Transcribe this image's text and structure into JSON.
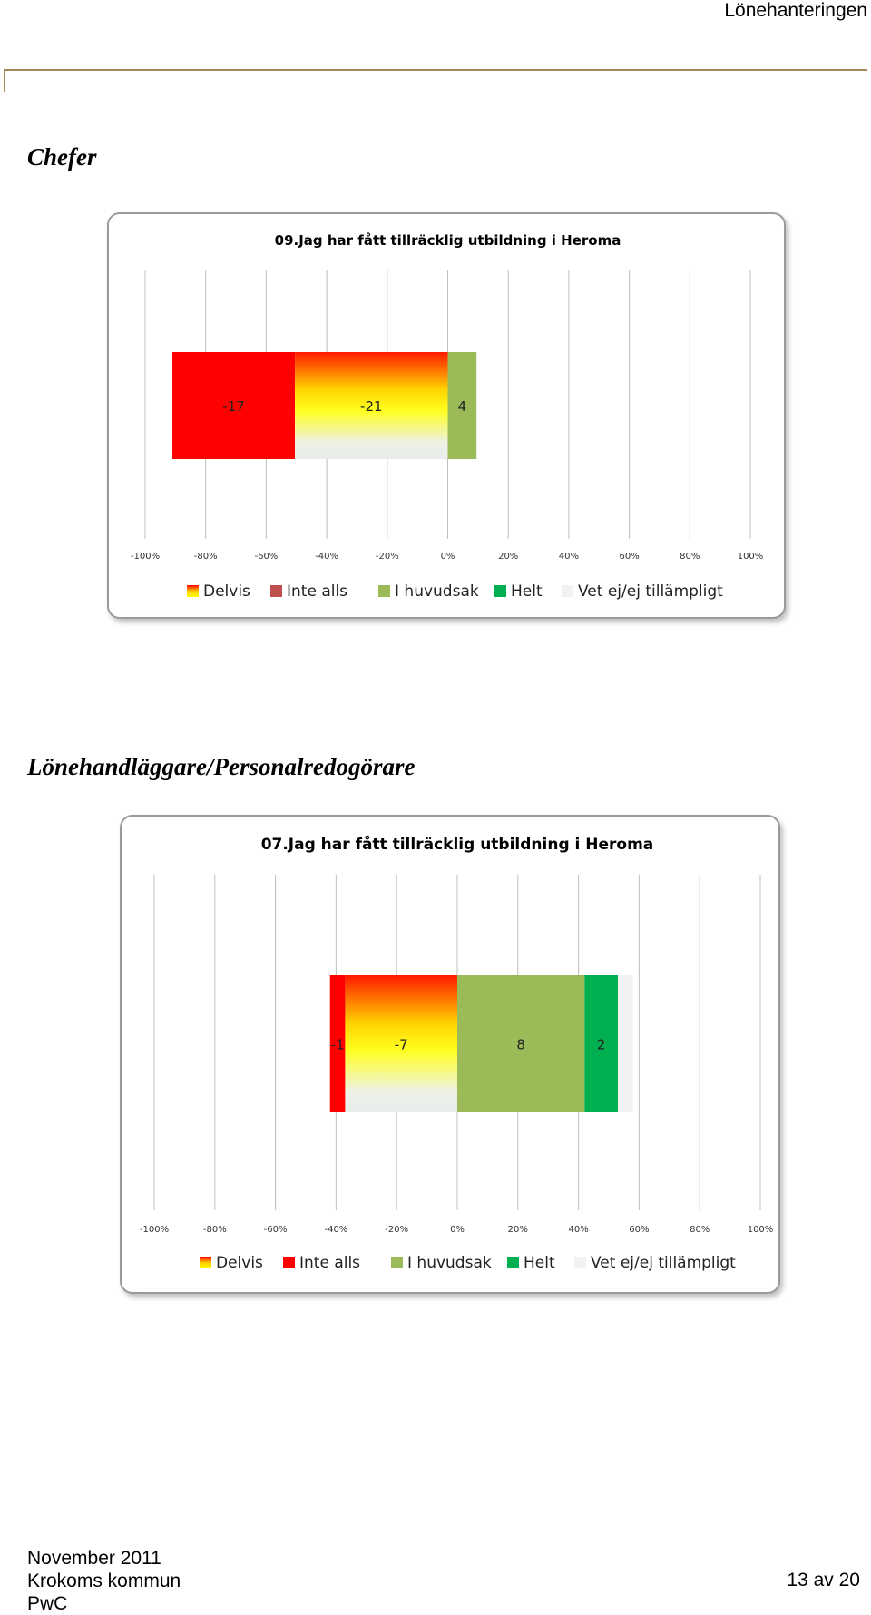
{
  "header": {
    "running_title": "Lönehanteringen"
  },
  "sections": [
    {
      "heading": "Chefer"
    },
    {
      "heading": "Lönehandläggare/Personalredogörare"
    }
  ],
  "chart_data": [
    {
      "type": "bar",
      "orientation": "horizontal-diverging",
      "title": "09.Jag har fått tillräcklig utbildning i Heroma",
      "xlim": [
        -100,
        100
      ],
      "x_ticks": [
        "-100%",
        "-80%",
        "-60%",
        "-40%",
        "-20%",
        "0%",
        "20%",
        "40%",
        "60%",
        "80%",
        "100%"
      ],
      "grid": true,
      "legend_position": "bottom",
      "segments": [
        {
          "series": "Inte alls",
          "start": -91,
          "end": -50.5,
          "label": "-17"
        },
        {
          "series": "Delvis",
          "start": -50.5,
          "end": 0,
          "label": "-21"
        },
        {
          "series": "I huvudsak",
          "start": 0,
          "end": 9.5,
          "label": "4"
        }
      ]
    },
    {
      "type": "bar",
      "orientation": "horizontal-diverging",
      "title": "07.Jag har fått tillräcklig utbildning i Heroma",
      "xlim": [
        -100,
        100
      ],
      "x_ticks": [
        "-100%",
        "-80%",
        "-60%",
        "-40%",
        "-20%",
        "0%",
        "20%",
        "40%",
        "60%",
        "80%",
        "100%"
      ],
      "grid": true,
      "legend_position": "bottom",
      "segments": [
        {
          "series": "Inte alls",
          "start": -42,
          "end": -37,
          "label": "-1"
        },
        {
          "series": "Delvis",
          "start": -37,
          "end": 0,
          "label": "-7"
        },
        {
          "series": "I huvudsak",
          "start": 0,
          "end": 42,
          "label": "8"
        },
        {
          "series": "Helt",
          "start": 42,
          "end": 53,
          "label": "2"
        },
        {
          "series": "Vet ej/ej tillämpligt",
          "start": 53,
          "end": 58,
          "label": ""
        }
      ]
    }
  ],
  "legend": [
    {
      "label": "Delvis",
      "swatch": "gradient"
    },
    {
      "label": "Inte alls",
      "color": "#ff0000"
    },
    {
      "label": "I huvudsak",
      "color": "#9bbb59"
    },
    {
      "label": "Helt",
      "color": "#00b050"
    },
    {
      "label": "Vet ej/ej tillämpligt",
      "color": "#f2f2f2"
    }
  ],
  "legend_chart1_inte_alls_color": "#c0504d",
  "footer": {
    "date": "November 2011",
    "org": "Krokoms kommun",
    "company": "PwC",
    "page": "13 av 20"
  }
}
